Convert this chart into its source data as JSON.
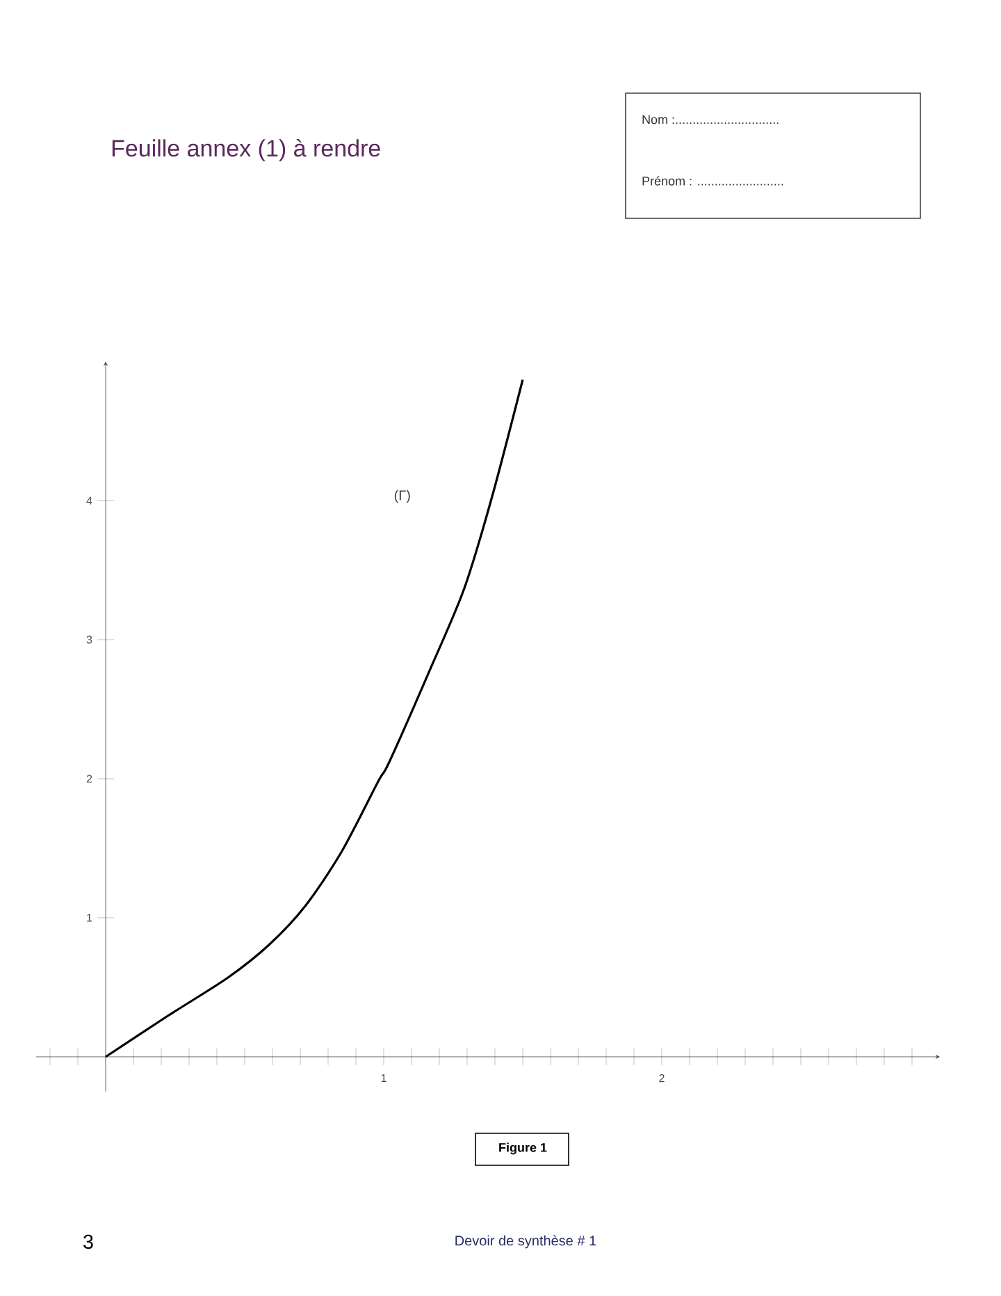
{
  "chart_data": {
    "type": "line",
    "title": "Feuille annex (1) à rendre",
    "x": [
      0,
      0.22,
      0.44,
      0.59,
      0.72,
      0.85,
      0.98,
      1.02,
      1.17,
      1.29,
      1.39,
      1.5
    ],
    "series": [
      {
        "name": "(Γ)",
        "color": "#000000",
        "values": [
          0,
          0.29,
          0.57,
          0.81,
          1.09,
          1.48,
          1.98,
          2.12,
          2.8,
          3.37,
          4.03,
          4.87
        ]
      }
    ],
    "xlim": [
      -0.25,
      3.0
    ],
    "ylim": [
      -0.25,
      5.0
    ],
    "xticks": [
      {
        "value": -0.2,
        "label": null
      },
      {
        "value": -0.1,
        "label": null
      },
      {
        "value": 0.1,
        "label": null
      },
      {
        "value": 0.2,
        "label": null
      },
      {
        "value": 0.3,
        "label": null
      },
      {
        "value": 0.4,
        "label": null
      },
      {
        "value": 0.5,
        "label": null
      },
      {
        "value": 0.6,
        "label": null
      },
      {
        "value": 0.7,
        "label": null
      },
      {
        "value": 0.8,
        "label": null
      },
      {
        "value": 0.9,
        "label": null
      },
      1,
      {
        "value": 1.1,
        "label": null
      },
      {
        "value": 1.2,
        "label": null
      },
      {
        "value": 1.3,
        "label": null
      },
      {
        "value": 1.4,
        "label": null
      },
      {
        "value": 1.5,
        "label": null
      },
      {
        "value": 1.6,
        "label": null
      },
      {
        "value": 1.7,
        "label": null
      },
      {
        "value": 1.8,
        "label": null
      },
      {
        "value": 1.9,
        "label": null
      },
      2,
      {
        "value": 2.1,
        "label": null
      },
      {
        "value": 2.2,
        "label": null
      },
      {
        "value": 2.3,
        "label": null
      },
      {
        "value": 2.4,
        "label": null
      },
      {
        "value": 2.5,
        "label": null
      },
      {
        "value": 2.6,
        "label": null
      },
      {
        "value": 2.7,
        "label": null
      },
      {
        "value": 2.8,
        "label": null
      },
      {
        "value": 2.9,
        "label": null
      }
    ],
    "yticks": [
      1,
      2,
      3,
      4
    ],
    "annotations": [
      "Nom :..............................",
      "Prénom : .........................",
      "Figure 1",
      "3",
      "Devoir de synthèse # 1"
    ]
  }
}
